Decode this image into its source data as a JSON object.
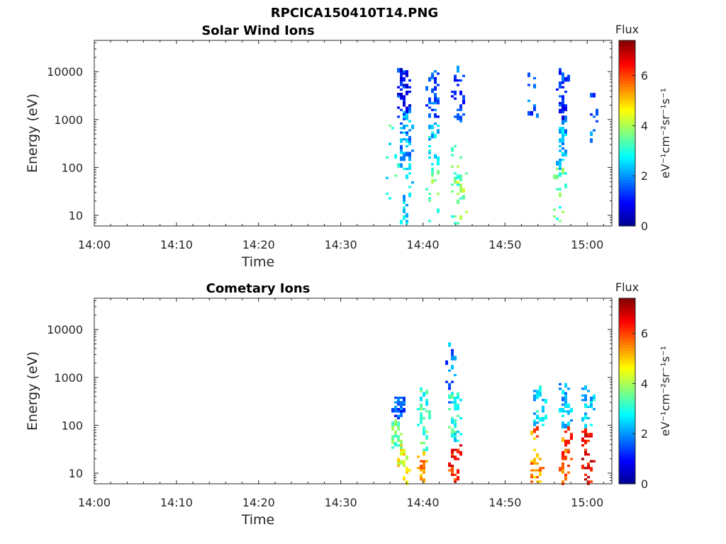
{
  "figure_title": "RPCICA150410T14.PNG",
  "colormap": [
    "#00008f",
    "#0000ff",
    "#0080ff",
    "#00ffff",
    "#80ff80",
    "#ffff00",
    "#ff8000",
    "#ff0000",
    "#800000"
  ],
  "chart_data": [
    {
      "type": "heatmap",
      "title": "Solar Wind Ions",
      "xlabel": "Time",
      "ylabel": "Energy (eV)",
      "x_range": [
        "14:00",
        "15:03"
      ],
      "x_ticks": [
        "14:00",
        "14:10",
        "14:20",
        "14:30",
        "14:40",
        "14:50",
        "15:00"
      ],
      "y_scale": "log",
      "y_range": [
        6,
        45000
      ],
      "y_ticks": [
        "10",
        "100",
        "1000",
        "10000"
      ],
      "colorbar": {
        "title": "Flux",
        "label": "eV⁻¹cm⁻²sr⁻¹s⁻¹",
        "range": [
          0,
          7.4
        ],
        "ticks": [
          "0",
          "2",
          "4",
          "6"
        ]
      },
      "blobs": [
        {
          "t": 14.625,
          "e_lo": 1200,
          "e_hi": 12000,
          "v": 1.0,
          "n": 60
        },
        {
          "t": 14.63,
          "e_lo": 150,
          "e_hi": 1500,
          "v": 2.0,
          "n": 45
        },
        {
          "t": 14.63,
          "e_lo": 6,
          "e_hi": 150,
          "v": 2.6,
          "n": 25
        },
        {
          "t": 14.603,
          "e_lo": 20,
          "e_hi": 1000,
          "v": 3.0,
          "n": 10
        },
        {
          "t": 14.685,
          "e_lo": 1000,
          "e_hi": 12000,
          "v": 1.4,
          "n": 35
        },
        {
          "t": 14.685,
          "e_lo": 100,
          "e_hi": 1000,
          "v": 2.6,
          "n": 25
        },
        {
          "t": 14.685,
          "e_lo": 6,
          "e_hi": 100,
          "v": 3.6,
          "n": 15
        },
        {
          "t": 14.735,
          "e_lo": 800,
          "e_hi": 14000,
          "v": 1.5,
          "n": 30
        },
        {
          "t": 14.733,
          "e_lo": 6,
          "e_hi": 300,
          "v": 3.4,
          "n": 25
        },
        {
          "t": 14.745,
          "e_lo": 6,
          "e_hi": 80,
          "v": 4.0,
          "n": 8
        },
        {
          "t": 14.95,
          "e_lo": 1000,
          "e_hi": 12000,
          "v": 1.2,
          "n": 35
        },
        {
          "t": 14.945,
          "e_lo": 100,
          "e_hi": 1000,
          "v": 2.2,
          "n": 30
        },
        {
          "t": 14.943,
          "e_lo": 6,
          "e_hi": 100,
          "v": 3.6,
          "n": 18
        },
        {
          "t": 14.885,
          "e_lo": 1000,
          "e_hi": 10000,
          "v": 1.5,
          "n": 10
        },
        {
          "t": 15.01,
          "e_lo": 300,
          "e_hi": 10000,
          "v": 1.8,
          "n": 10
        }
      ]
    },
    {
      "type": "heatmap",
      "title": "Cometary Ions",
      "xlabel": "Time",
      "ylabel": "Energy (eV)",
      "x_range": [
        "14:00",
        "15:03"
      ],
      "x_ticks": [
        "14:00",
        "14:10",
        "14:20",
        "14:30",
        "14:40",
        "14:50",
        "15:00"
      ],
      "y_scale": "log",
      "y_range": [
        6,
        45000
      ],
      "y_ticks": [
        "10",
        "100",
        "1000",
        "10000"
      ],
      "colorbar": {
        "title": "Flux",
        "label": "eV⁻¹cm⁻²sr⁻¹s⁻¹",
        "range": [
          0,
          7.4
        ],
        "ticks": [
          "0",
          "2",
          "4",
          "6"
        ]
      },
      "blobs": [
        {
          "t": 14.615,
          "e_lo": 150,
          "e_hi": 400,
          "v": 1.5,
          "n": 35
        },
        {
          "t": 14.61,
          "e_lo": 30,
          "e_hi": 150,
          "v": 3.4,
          "n": 30
        },
        {
          "t": 14.625,
          "e_lo": 6,
          "e_hi": 40,
          "v": 4.6,
          "n": 25
        },
        {
          "t": 14.665,
          "e_lo": 30,
          "e_hi": 600,
          "v": 3.2,
          "n": 35
        },
        {
          "t": 14.665,
          "e_lo": 6,
          "e_hi": 30,
          "v": 5.4,
          "n": 20
        },
        {
          "t": 14.73,
          "e_lo": 40,
          "e_hi": 500,
          "v": 3.0,
          "n": 45
        },
        {
          "t": 14.728,
          "e_lo": 6,
          "e_hi": 40,
          "v": 6.2,
          "n": 30
        },
        {
          "t": 14.72,
          "e_lo": 300,
          "e_hi": 6000,
          "v": 1.8,
          "n": 15
        },
        {
          "t": 14.9,
          "e_lo": 100,
          "e_hi": 700,
          "v": 2.5,
          "n": 35
        },
        {
          "t": 14.895,
          "e_lo": 6,
          "e_hi": 100,
          "v": 5.5,
          "n": 35
        },
        {
          "t": 14.955,
          "e_lo": 100,
          "e_hi": 800,
          "v": 2.2,
          "n": 35
        },
        {
          "t": 14.955,
          "e_lo": 6,
          "e_hi": 100,
          "v": 5.8,
          "n": 35
        },
        {
          "t": 15.0,
          "e_lo": 100,
          "e_hi": 800,
          "v": 2.4,
          "n": 30
        },
        {
          "t": 14.998,
          "e_lo": 6,
          "e_hi": 100,
          "v": 6.6,
          "n": 35
        }
      ]
    }
  ]
}
